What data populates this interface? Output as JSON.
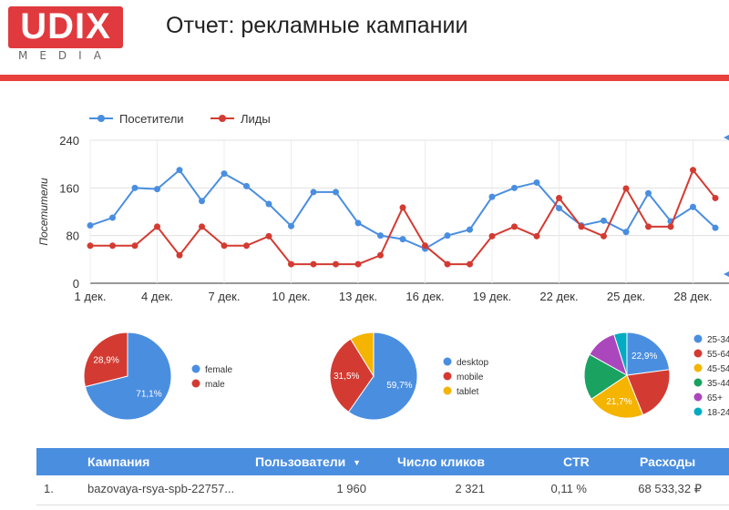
{
  "header": {
    "logo_text": "UDIX",
    "logo_sub": "MEDIA",
    "title": "Отчет: рекламные кампании"
  },
  "colors": {
    "accent": "#e8413d",
    "blue": "#4a8ee0",
    "red": "#d33b32"
  },
  "chart_data": [
    {
      "type": "line",
      "ylabel": "Посетители",
      "ylim": [
        0,
        240
      ],
      "yticks": [
        "0",
        "80",
        "160",
        "240"
      ],
      "x": [
        "1 дек.",
        "2 дек.",
        "3 дек.",
        "4 дек.",
        "5 дек.",
        "6 дек.",
        "7 дек.",
        "8 дек.",
        "9 дек.",
        "10 дек.",
        "11 дек.",
        "12 дек.",
        "13 дек.",
        "14 дек.",
        "15 дек.",
        "16 дек.",
        "17 дек.",
        "18 дек.",
        "19 дек.",
        "20 дек.",
        "21 дек.",
        "22 дек.",
        "23 дек.",
        "24 дек.",
        "25 дек.",
        "26 дек.",
        "27 дек.",
        "28 дек.",
        "29 дек."
      ],
      "xtick_labels": [
        "1 дек.",
        "4 дек.",
        "7 дек.",
        "10 дек.",
        "13 дек.",
        "16 дек.",
        "19 дек.",
        "22 дек.",
        "25 дек.",
        "28 дек."
      ],
      "legend_position": "top-left",
      "series": [
        {
          "name": "Посетители",
          "color": "#4a8ee0",
          "values": [
            97,
            110,
            160,
            158,
            190,
            138,
            184,
            163,
            133,
            96,
            153,
            153,
            101,
            80,
            74,
            58,
            80,
            90,
            145,
            160,
            169,
            126,
            97,
            105,
            86,
            151,
            104,
            128,
            93
          ]
        },
        {
          "name": "Лиды",
          "color": "#d33b32",
          "values": [
            63,
            63,
            63,
            95,
            47,
            95,
            63,
            63,
            79,
            32,
            32,
            32,
            32,
            47,
            127,
            63,
            32,
            32,
            79,
            95,
            79,
            143,
            95,
            79,
            159,
            95,
            95,
            190,
            143
          ]
        }
      ]
    },
    {
      "type": "pie",
      "labels": [
        "female",
        "male"
      ],
      "values": [
        71.1,
        28.9
      ],
      "value_labels": [
        "71,1%",
        "28,9%"
      ],
      "colors": [
        "#4a8ee0",
        "#d33b32"
      ],
      "legend_position": "right"
    },
    {
      "type": "pie",
      "labels": [
        "desktop",
        "mobile",
        "tablet"
      ],
      "values": [
        59.7,
        31.5,
        8.8
      ],
      "value_labels": [
        "59,7%",
        "31,5%",
        ""
      ],
      "colors": [
        "#4a8ee0",
        "#d33b32",
        "#f4b400"
      ],
      "legend_position": "right"
    },
    {
      "type": "pie",
      "labels": [
        "25-34",
        "55-64",
        "45-54",
        "35-44",
        "65+",
        "18-24"
      ],
      "values": [
        22.9,
        21.0,
        21.7,
        17.5,
        12.0,
        4.9
      ],
      "value_labels": [
        "22,9%",
        "",
        "21,7%",
        "",
        "",
        ""
      ],
      "colors": [
        "#4a8ee0",
        "#d33b32",
        "#f4b400",
        "#1aa260",
        "#ab47bc",
        "#00acc1"
      ],
      "legend_position": "right"
    }
  ],
  "table": {
    "columns": [
      "Кампания",
      "Пользователи",
      "Число кликов",
      "CTR",
      "Расходы"
    ],
    "sort_icon": "sort-down-icon",
    "rows": [
      {
        "num": "1.",
        "campaign": "bazovaya-rsya-spb-22757...",
        "users": "1 960",
        "clicks": "2 321",
        "ctr": "0,11 %",
        "cost": "68 533,32 ₽"
      }
    ]
  }
}
